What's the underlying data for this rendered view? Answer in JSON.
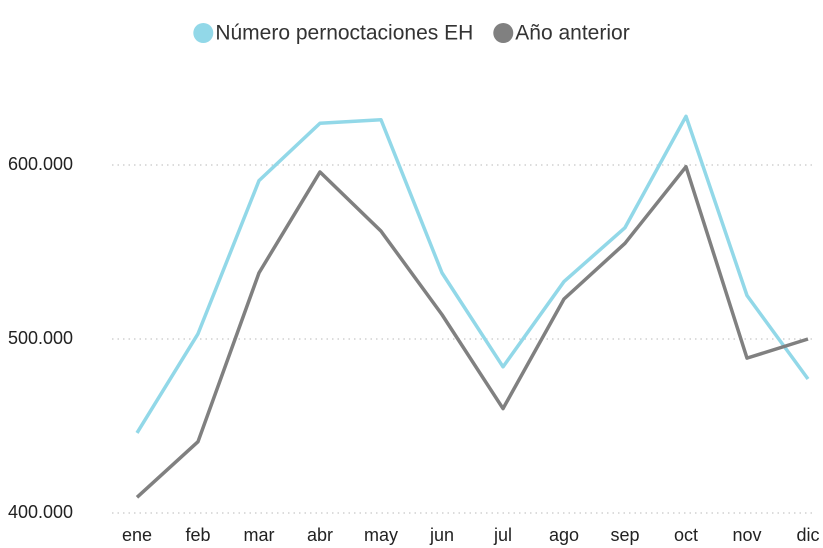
{
  "chart_data": {
    "type": "line",
    "categories": [
      "ene",
      "feb",
      "mar",
      "abr",
      "may",
      "jun",
      "jul",
      "ago",
      "sep",
      "oct",
      "nov",
      "dic"
    ],
    "series": [
      {
        "name": "Número pernoctaciones EH",
        "color": "#92d8e8",
        "values": [
          446000,
          503000,
          591000,
          624000,
          626000,
          538000,
          484000,
          533000,
          564000,
          628000,
          525000,
          477000
        ]
      },
      {
        "name": "Año anterior",
        "color": "#808080",
        "values": [
          409000,
          441000,
          538000,
          596000,
          562000,
          514000,
          460000,
          523000,
          555000,
          599000,
          489000,
          500000
        ]
      }
    ],
    "ylim": [
      400000,
      660000
    ],
    "yticks": [
      {
        "value": 400000,
        "label": "400.000"
      },
      {
        "value": 500000,
        "label": "500.000"
      },
      {
        "value": 600000,
        "label": "600.000"
      }
    ],
    "grid": true,
    "legend": "top"
  }
}
